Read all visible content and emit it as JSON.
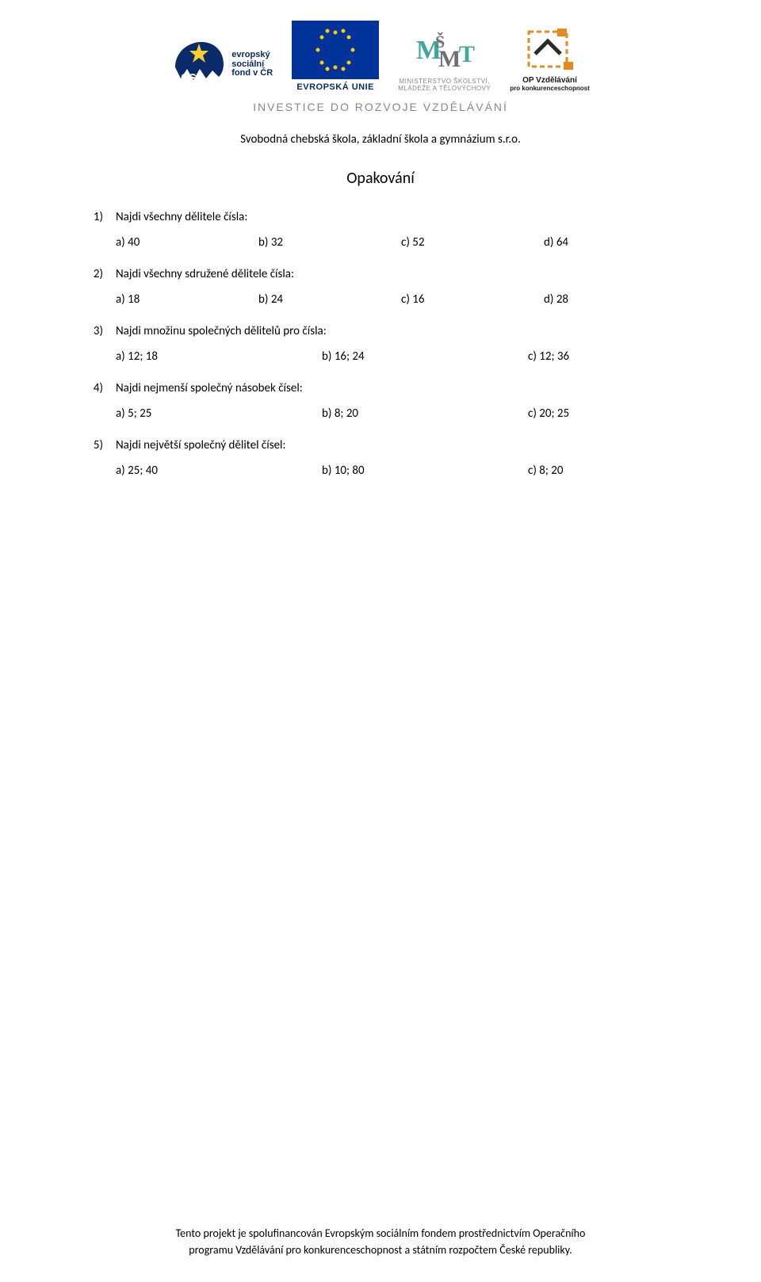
{
  "header": {
    "invest_line": "INVESTICE DO ROZVOJE VZDĚLÁVÁNÍ",
    "school_line": "Svobodná chebská škola, základní škola a gymnázium s.r.o.",
    "logos": {
      "esf": {
        "text_lines": [
          "evropský",
          "sociální",
          "fond v ČR"
        ],
        "colors": {
          "yellow": "#f7cf2f",
          "navy": "#0a2a6a",
          "white": "#ffffff"
        }
      },
      "eu": {
        "label": "EVROPSKÁ UNIE",
        "flag_bg": "#003399",
        "star_color": "#ffcc00"
      },
      "msmt": {
        "glyph_color_teal": "#3fa79d",
        "glyph_color_gray": "#6f6f6f",
        "caption_line1": "MINISTERSTVO ŠKOLSTVÍ,",
        "caption_line2": "MLÁDEŽE A TĚLOVÝCHOVY"
      },
      "op": {
        "orange": "#e58a1f",
        "dark": "#2a2a2a",
        "caption_top": "OP Vzdělávání",
        "caption_bot": "pro konkurenceschopnost"
      }
    }
  },
  "document": {
    "title": "Opakování",
    "title_fontsize": 20,
    "body_fontsize": 15,
    "text_color": "#000000",
    "background_color": "#ffffff"
  },
  "questions": [
    {
      "number": "1)",
      "text": "Najdi všechny dělitele čísla:",
      "layout": "cols4",
      "options": [
        "a) 40",
        "b) 32",
        "c) 52",
        "d) 64"
      ]
    },
    {
      "number": "2)",
      "text": "Najdi všechny sdružené dělitele čísla:",
      "layout": "cols4",
      "options": [
        "a) 18",
        "b) 24",
        "c) 16",
        "d) 28"
      ]
    },
    {
      "number": "3)",
      "text": "Najdi množinu společných dělitelů pro čísla:",
      "layout": "cols3",
      "options": [
        "a) 12; 18",
        "b) 16; 24",
        "c) 12; 36"
      ]
    },
    {
      "number": "4)",
      "text": "Najdi nejmenší společný násobek čísel:",
      "layout": "cols3",
      "options": [
        "a) 5; 25",
        "b) 8; 20",
        "c) 20; 25"
      ]
    },
    {
      "number": "5)",
      "text": "Najdi největší společný dělitel čísel:",
      "layout": "cols3",
      "options": [
        "a) 25; 40",
        "b) 10; 80",
        "c) 8; 20"
      ]
    }
  ],
  "footer": {
    "line1": "Tento projekt je spolufinancován Evropským sociálním fondem prostřednictvím Operačního",
    "line2": "programu Vzdělávání pro konkurenceschopnost a státním rozpočtem České republiky."
  }
}
